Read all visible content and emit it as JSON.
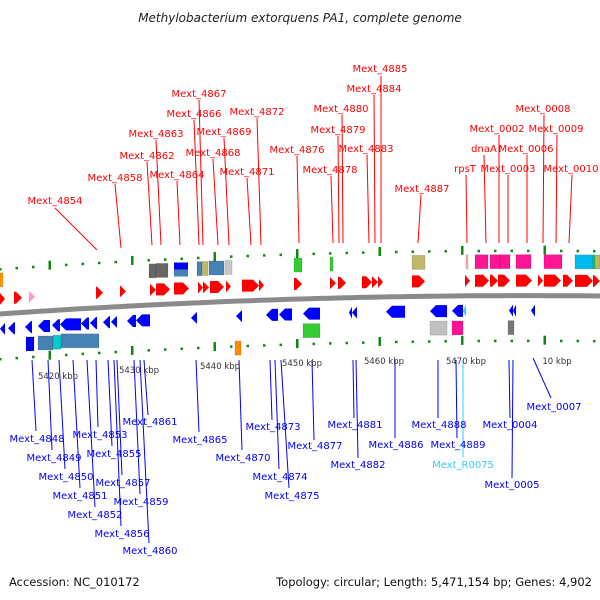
{
  "title": "Methylobacterium extorquens PA1, complete genome",
  "footer": {
    "accession": "Accession: NC_010172",
    "summary": "Topology: circular; Length: 5,471,154 bp; Genes: 4,902"
  },
  "colors": {
    "forward_gene": "#ff0000",
    "reverse_gene": "#0000ff",
    "rna_gene": "#33ccff",
    "tick": "#118811",
    "backbone": "#888888"
  },
  "scale_labels": [
    "5420 kbp",
    "5430 kbp",
    "5440 kbp",
    "5450 kbp",
    "5460 kbp",
    "5470 kbp",
    "10 kbp"
  ],
  "forward_labels": [
    "Mext_4885",
    "Mext_4884",
    "Mext_4867",
    "Mext_4866",
    "Mext_4872",
    "Mext_4880",
    "Mext_4863",
    "Mext_4869",
    "Mext_4879",
    "Mext_4876",
    "Mext_4862",
    "Mext_4868",
    "Mext_4883",
    "Mext_4858",
    "Mext_4864",
    "Mext_4871",
    "Mext_4878",
    "Mext_4887",
    "Mext_4854",
    "rpsT",
    "dnaA",
    "Mext_0002",
    "Mext_0003",
    "Mext_0006",
    "Mext_0008",
    "Mext_0009",
    "Mext_0010"
  ],
  "reverse_labels": [
    "Mext_4848",
    "Mext_4849",
    "Mext_4850",
    "Mext_4851",
    "Mext_4852",
    "Mext_4853",
    "Mext_4855",
    "Mext_4856",
    "Mext_4857",
    "Mext_4859",
    "Mext_4860",
    "Mext_4861",
    "Mext_4865",
    "Mext_4870",
    "Mext_4873",
    "Mext_4874",
    "Mext_4875",
    "Mext_4877",
    "Mext_4881",
    "Mext_4882",
    "Mext_4886",
    "Mext_4888",
    "Mext_4889",
    "Mext_R0075",
    "Mext_0004",
    "Mext_0005",
    "Mext_0007"
  ]
}
